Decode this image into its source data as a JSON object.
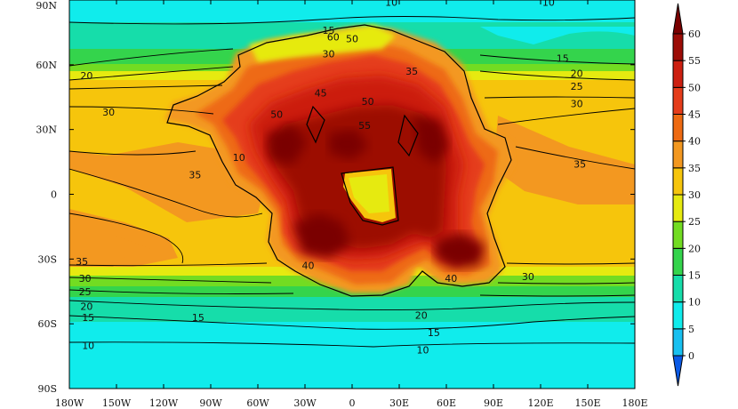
{
  "map": {
    "projection": "cylindrical-equidistant",
    "lon_range": [
      -180,
      180
    ],
    "lat_range": [
      -90,
      90
    ],
    "x_ticks": [
      "180W",
      "150W",
      "120W",
      "90W",
      "60W",
      "30W",
      "0",
      "30E",
      "60E",
      "90E",
      "120E",
      "150E",
      "180E"
    ],
    "y_ticks": [
      {
        "lat": 90,
        "label": "90N"
      },
      {
        "lat": 60,
        "label": "60N"
      },
      {
        "lat": 30,
        "label": "30N"
      },
      {
        "lat": 0,
        "label": "0"
      },
      {
        "lat": -30,
        "label": "30S"
      },
      {
        "lat": -60,
        "label": "60S"
      },
      {
        "lat": -90,
        "label": "90S"
      }
    ]
  },
  "colorbar": {
    "min": 0,
    "max": 60,
    "levels": [
      "0",
      "5",
      "10",
      "15",
      "20",
      "25",
      "30",
      "35",
      "40",
      "45",
      "50",
      "55",
      "60"
    ],
    "colors": [
      "#0a5ae6",
      "#18c0f0",
      "#10ecec",
      "#16ddaa",
      "#34d44c",
      "#72dc22",
      "#e6ea10",
      "#f6c50c",
      "#f39820",
      "#ee6a12",
      "#e53c1a",
      "#cc1f10",
      "#9c0c06",
      "#7a0000"
    ]
  },
  "contour_labels": [
    {
      "text": "10",
      "lon": -72,
      "lat": 17
    },
    {
      "text": "10",
      "lon": 25,
      "lat": 89
    },
    {
      "text": "10",
      "lon": 125,
      "lat": 89
    },
    {
      "text": "10",
      "lon": -168,
      "lat": -70
    },
    {
      "text": "10",
      "lon": 45,
      "lat": -72
    },
    {
      "text": "15",
      "lon": -15,
      "lat": 76
    },
    {
      "text": "15",
      "lon": -98,
      "lat": -57
    },
    {
      "text": "15",
      "lon": 134,
      "lat": 63
    },
    {
      "text": "15",
      "lon": -168,
      "lat": -57
    },
    {
      "text": "15",
      "lon": 52,
      "lat": -64
    },
    {
      "text": "20",
      "lon": -169,
      "lat": 55
    },
    {
      "text": "20",
      "lon": 143,
      "lat": 56
    },
    {
      "text": "20",
      "lon": -169,
      "lat": -52
    },
    {
      "text": "20",
      "lon": 44,
      "lat": -56
    },
    {
      "text": "25",
      "lon": 143,
      "lat": 50
    },
    {
      "text": "25",
      "lon": -170,
      "lat": -45
    },
    {
      "text": "30",
      "lon": -155,
      "lat": 38
    },
    {
      "text": "30",
      "lon": 143,
      "lat": 42
    },
    {
      "text": "30",
      "lon": -170,
      "lat": -39
    },
    {
      "text": "30",
      "lon": 112,
      "lat": -38
    },
    {
      "text": "30",
      "lon": -15,
      "lat": 65
    },
    {
      "text": "35",
      "lon": -172,
      "lat": -31
    },
    {
      "text": "35",
      "lon": -100,
      "lat": 9
    },
    {
      "text": "35",
      "lon": 145,
      "lat": 14
    },
    {
      "text": "35",
      "lon": 38,
      "lat": 57
    },
    {
      "text": "40",
      "lon": 63,
      "lat": -39
    },
    {
      "text": "40",
      "lon": -28,
      "lat": -33
    },
    {
      "text": "45",
      "lon": -20,
      "lat": 47
    },
    {
      "text": "50",
      "lon": -48,
      "lat": 37
    },
    {
      "text": "50",
      "lon": 10,
      "lat": 43
    },
    {
      "text": "55",
      "lon": 8,
      "lat": 32
    },
    {
      "text": "60",
      "lon": -12,
      "lat": 73
    },
    {
      "text": "50",
      "lon": 0,
      "lat": 72
    }
  ]
}
